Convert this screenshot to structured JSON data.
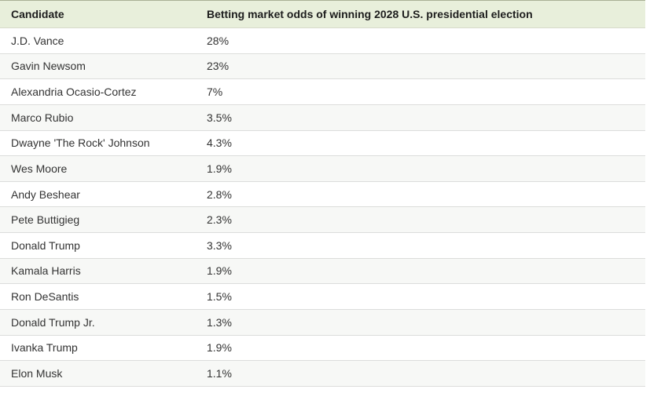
{
  "table": {
    "columns": [
      {
        "label": "Candidate"
      },
      {
        "label": "Betting market odds of winning 2028 U.S. presidential election"
      }
    ],
    "rows": [
      {
        "candidate": "J.D. Vance",
        "odds": "28%"
      },
      {
        "candidate": "Gavin Newsom",
        "odds": "23%"
      },
      {
        "candidate": "Alexandria Ocasio-Cortez",
        "odds": "7%"
      },
      {
        "candidate": "Marco Rubio",
        "odds": "3.5%"
      },
      {
        "candidate": "Dwayne 'The Rock' Johnson",
        "odds": "4.3%"
      },
      {
        "candidate": "Wes Moore",
        "odds": "1.9%"
      },
      {
        "candidate": "Andy Beshear",
        "odds": "2.8%"
      },
      {
        "candidate": "Pete Buttigieg",
        "odds": "2.3%"
      },
      {
        "candidate": "Donald Trump",
        "odds": "3.3%"
      },
      {
        "candidate": "Kamala Harris",
        "odds": "1.9%"
      },
      {
        "candidate": "Ron DeSantis",
        "odds": "1.5%"
      },
      {
        "candidate": "Donald Trump Jr.",
        "odds": "1.3%"
      },
      {
        "candidate": "Ivanka Trump",
        "odds": "1.9%"
      },
      {
        "candidate": "Elon Musk",
        "odds": "1.1%"
      }
    ],
    "colors": {
      "header_bg": "#e8efdb",
      "top_border": "#a9b096",
      "row_border": "#dcdddb",
      "row_alt_bg": "#f7f8f6",
      "header_text": "#1d1d1d",
      "body_text": "#333333"
    }
  },
  "chart_data": {
    "type": "table",
    "title": "Betting market odds of winning 2028 U.S. presidential election",
    "columns": [
      "Candidate",
      "Betting market odds of winning 2028 U.S. presidential election"
    ],
    "categories": [
      "J.D. Vance",
      "Gavin Newsom",
      "Alexandria Ocasio-Cortez",
      "Marco Rubio",
      "Dwayne 'The Rock' Johnson",
      "Wes Moore",
      "Andy Beshear",
      "Pete Buttigieg",
      "Donald Trump",
      "Kamala Harris",
      "Ron DeSantis",
      "Donald Trump Jr.",
      "Ivanka Trump",
      "Elon Musk"
    ],
    "values": [
      28,
      23,
      7,
      3.5,
      4.3,
      1.9,
      2.8,
      2.3,
      3.3,
      1.9,
      1.5,
      1.3,
      1.9,
      1.1
    ],
    "value_unit": "%"
  }
}
